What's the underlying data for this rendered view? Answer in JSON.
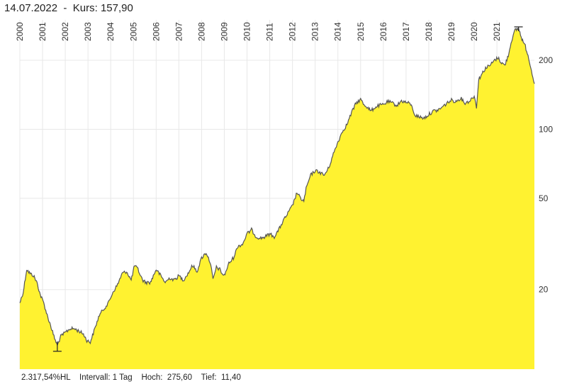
{
  "header": {
    "date": "14.07.2022",
    "separator": "-",
    "price_label": "Kurs:",
    "price_value": "157,90"
  },
  "footer": {
    "performance": "2.317,54%HL",
    "interval_label": "Intervall:",
    "interval_value": "1 Tag",
    "high_label": "Hoch:",
    "high_value": "275,60",
    "low_label": "Tief:",
    "low_value": "11,40"
  },
  "colors": {
    "fill": "#fff230",
    "line": "#555555",
    "grid": "#e8e8e8"
  },
  "chart_data": {
    "type": "area",
    "title": "14.07.2022 - Kurs: 157,90",
    "xlabel": "",
    "ylabel": "",
    "scale": "log",
    "xlim": [
      2000.0,
      2022.65
    ],
    "ylim": [
      9.0,
      300.0
    ],
    "x_ticks": [
      "2000",
      "2001",
      "2002",
      "2003",
      "2004",
      "2005",
      "2006",
      "2007",
      "2008",
      "2009",
      "2010",
      "2011",
      "2012",
      "2013",
      "2014",
      "2015",
      "2016",
      "2017",
      "2018",
      "2019",
      "2020",
      "2021"
    ],
    "y_ticks": [
      "20",
      "50",
      "100",
      "200"
    ],
    "y_tick_values": [
      20,
      50,
      100,
      200
    ],
    "high": 275.6,
    "low": 11.4,
    "last": 157.9,
    "x": [
      2000.0,
      2000.15,
      2000.3,
      2000.45,
      2000.6,
      2000.75,
      2000.9,
      2001.05,
      2001.2,
      2001.35,
      2001.5,
      2001.65,
      2001.8,
      2002.0,
      2002.2,
      2002.4,
      2002.6,
      2002.8,
      2002.95,
      2003.1,
      2003.3,
      2003.5,
      2003.7,
      2003.9,
      2004.1,
      2004.3,
      2004.5,
      2004.7,
      2004.9,
      2005.05,
      2005.2,
      2005.4,
      2005.55,
      2005.75,
      2006.0,
      2006.2,
      2006.4,
      2006.6,
      2006.8,
      2007.0,
      2007.2,
      2007.4,
      2007.6,
      2007.8,
      2008.0,
      2008.2,
      2008.4,
      2008.5,
      2008.65,
      2008.8,
      2008.9,
      2009.0,
      2009.2,
      2009.4,
      2009.6,
      2009.8,
      2010.0,
      2010.2,
      2010.4,
      2010.6,
      2010.8,
      2011.0,
      2011.2,
      2011.4,
      2011.6,
      2011.8,
      2012.0,
      2012.2,
      2012.35,
      2012.5,
      2012.6,
      2012.8,
      2013.0,
      2013.2,
      2013.4,
      2013.6,
      2013.8,
      2014.0,
      2014.2,
      2014.4,
      2014.6,
      2014.8,
      2015.0,
      2015.15,
      2015.3,
      2015.45,
      2015.6,
      2015.8,
      2016.0,
      2016.2,
      2016.4,
      2016.6,
      2016.8,
      2017.0,
      2017.2,
      2017.4,
      2017.6,
      2017.8,
      2018.0,
      2018.2,
      2018.4,
      2018.6,
      2018.8,
      2019.0,
      2019.2,
      2019.4,
      2019.6,
      2019.8,
      2020.0,
      2020.1,
      2020.2,
      2020.35,
      2020.5,
      2020.7,
      2020.9,
      2021.05,
      2021.2,
      2021.35,
      2021.5,
      2021.65,
      2021.8,
      2021.95,
      2022.1,
      2022.25,
      2022.4,
      2022.55,
      2022.65
    ],
    "values": [
      17.5,
      19.5,
      24.5,
      23.5,
      23.0,
      21.5,
      19.0,
      17.5,
      15.5,
      14.0,
      12.5,
      11.4,
      12.5,
      13.0,
      13.5,
      13.5,
      13.2,
      12.8,
      12.0,
      11.8,
      13.5,
      15.5,
      16.5,
      17.5,
      19.5,
      21.0,
      23.5,
      24.0,
      22.0,
      25.5,
      24.5,
      22.0,
      21.5,
      21.5,
      24.5,
      23.0,
      21.5,
      22.5,
      22.0,
      23.0,
      22.0,
      23.5,
      25.5,
      24.0,
      27.5,
      29.0,
      26.0,
      22.0,
      25.0,
      24.5,
      23.5,
      23.0,
      26.0,
      27.5,
      31.0,
      31.5,
      35.0,
      36.5,
      34.0,
      33.5,
      34.0,
      35.0,
      34.0,
      36.5,
      40.0,
      43.0,
      46.5,
      53.0,
      50.0,
      48.5,
      55.0,
      63.0,
      66.0,
      65.0,
      63.0,
      68.0,
      78.0,
      88.0,
      98.0,
      105.0,
      118.0,
      130.0,
      135.0,
      128.0,
      125.0,
      120.0,
      124.0,
      127.0,
      128.0,
      132.0,
      130.0,
      127.0,
      133.0,
      131.0,
      129.0,
      115.0,
      113.0,
      112.0,
      116.0,
      120.0,
      121.0,
      125.0,
      130.0,
      134.0,
      132.0,
      137.0,
      130.0,
      133.0,
      140.0,
      125.0,
      165.0,
      175.0,
      185.0,
      190.0,
      200.0,
      205.0,
      195.0,
      190.0,
      210.0,
      245.0,
      270.0,
      275.6,
      248.0,
      230.0,
      205.0,
      175.0,
      157.9
    ]
  }
}
